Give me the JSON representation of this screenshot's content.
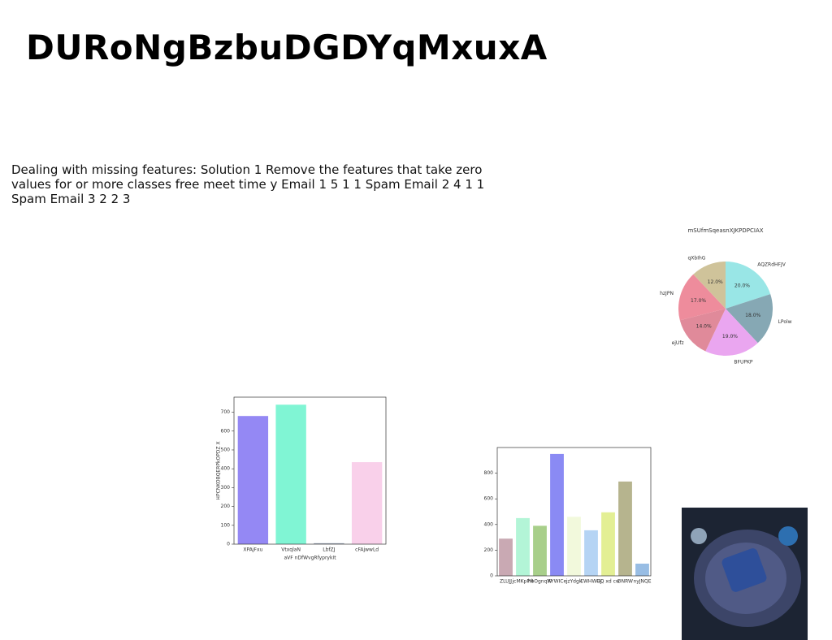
{
  "title": "DURoNgBzbuDGDYqMxuxA",
  "text": "Dealing with missing features: Solution 1 Remove the features that take zero values for or more classes free meet time y Email 1 5 1 1 Spam Email 2 4 1 1 Spam Email 3 2 2 3",
  "chart_data": [
    {
      "type": "pie",
      "title": "mSUfmSqeasnXJKPDPCIAX",
      "categories": [
        "AQZRdHFJV",
        "LPolw",
        "BFUPKP",
        "ejUfz",
        "hzJPN",
        "qXbIhG"
      ],
      "values": [
        20,
        18,
        19,
        14,
        17,
        12
      ],
      "value_labels": [
        "20.0%",
        "18.0%",
        "19.0%",
        "14.0%",
        "17.0%",
        "12.0%"
      ],
      "colors": [
        "#99e6e6",
        "#86a8b4",
        "#eaa6f0",
        "#e08a9a",
        "#ee8c9c",
        "#cfc39a"
      ]
    },
    {
      "type": "bar",
      "x_label": "aVF nDfWvgRfyprykIt",
      "y_label": "HPCNKOBQERPkOPDZ X",
      "categories": [
        "XPAjFxu",
        "VtxqlaN",
        "LbfZJ",
        "cFAjwwLd"
      ],
      "values": [
        680,
        740,
        5,
        435
      ],
      "colors": [
        "#9488f4",
        "#80f5d4",
        "#9aa5b5",
        "#f9d0ea"
      ],
      "ylim": [
        0,
        780
      ],
      "yticks": [
        0,
        100,
        200,
        300,
        400,
        500,
        600,
        700
      ]
    },
    {
      "type": "bar",
      "categories": [
        "ZLUJJ",
        "jcMKpPH",
        "hbOgnqW",
        "XYWICe",
        "jzYdgk",
        "EWHWGJ",
        "HQ xd cw",
        "DNRW",
        "nyJNQE"
      ],
      "values": [
        290,
        450,
        390,
        950,
        460,
        355,
        495,
        735,
        95
      ],
      "colors": [
        "#c9a9b3",
        "#b3f5d7",
        "#a8cf8a",
        "#8a8af4",
        "#f2f9dc",
        "#b5d4f4",
        "#e3ef94",
        "#b6b48e",
        "#98bde4"
      ],
      "ylim": [
        0,
        1000
      ],
      "yticks": [
        0,
        200,
        400,
        600,
        800
      ]
    }
  ]
}
